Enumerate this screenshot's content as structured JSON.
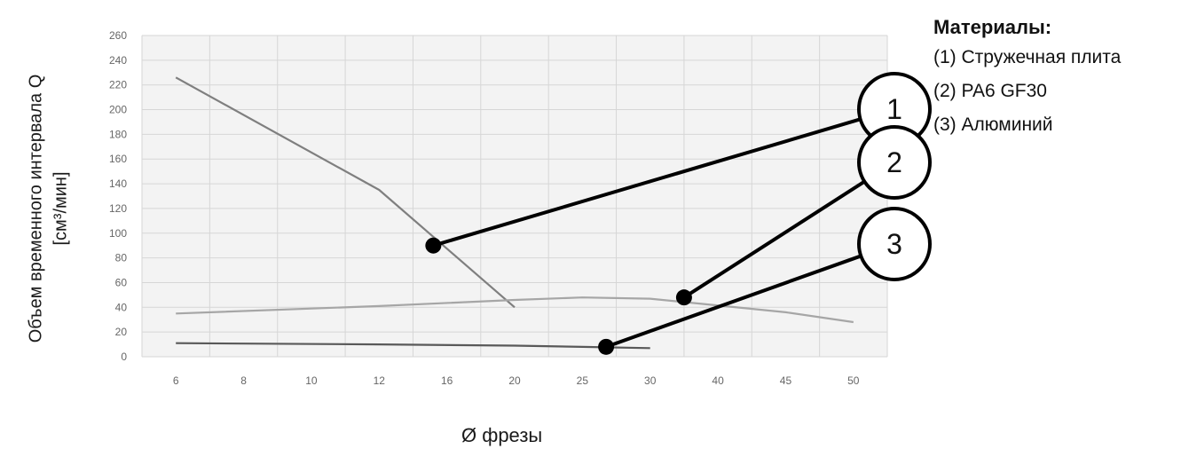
{
  "chart_data": {
    "type": "line",
    "title": "",
    "xlabel": "Ø фрезы",
    "ylabel_lines": [
      "Объем временного интервала Q",
      "[см³/мин]"
    ],
    "categories": [
      "6",
      "8",
      "10",
      "12",
      "16",
      "20",
      "25",
      "30",
      "40",
      "45",
      "50"
    ],
    "ylim": [
      0,
      260
    ],
    "yticks": [
      0,
      20,
      40,
      60,
      80,
      100,
      120,
      140,
      160,
      180,
      200,
      220,
      240,
      260
    ],
    "grid": true,
    "series": [
      {
        "marker": "1",
        "color": "#7f7f7f",
        "values": [
          226,
          null,
          null,
          135,
          null,
          40,
          null,
          null,
          null,
          null,
          null
        ]
      },
      {
        "marker": "2",
        "color": "#a6a6a6",
        "values": [
          35,
          null,
          null,
          41,
          null,
          46,
          48,
          47,
          null,
          36,
          28
        ]
      },
      {
        "marker": "3",
        "color": "#595959",
        "values": [
          11,
          null,
          null,
          10,
          null,
          9,
          8,
          7,
          null,
          null,
          null
        ]
      }
    ],
    "callouts": [
      {
        "label": "1",
        "x_index": 3.8,
        "y": 90
      },
      {
        "label": "2",
        "x_index": 7.5,
        "y": 48
      },
      {
        "label": "3",
        "x_index": 6.35,
        "y": 8
      }
    ]
  },
  "legend": {
    "title": "Материалы:",
    "items": [
      "(1) Стружечная плита",
      "(2) PA6 GF30",
      "(3) Алюминий"
    ]
  }
}
